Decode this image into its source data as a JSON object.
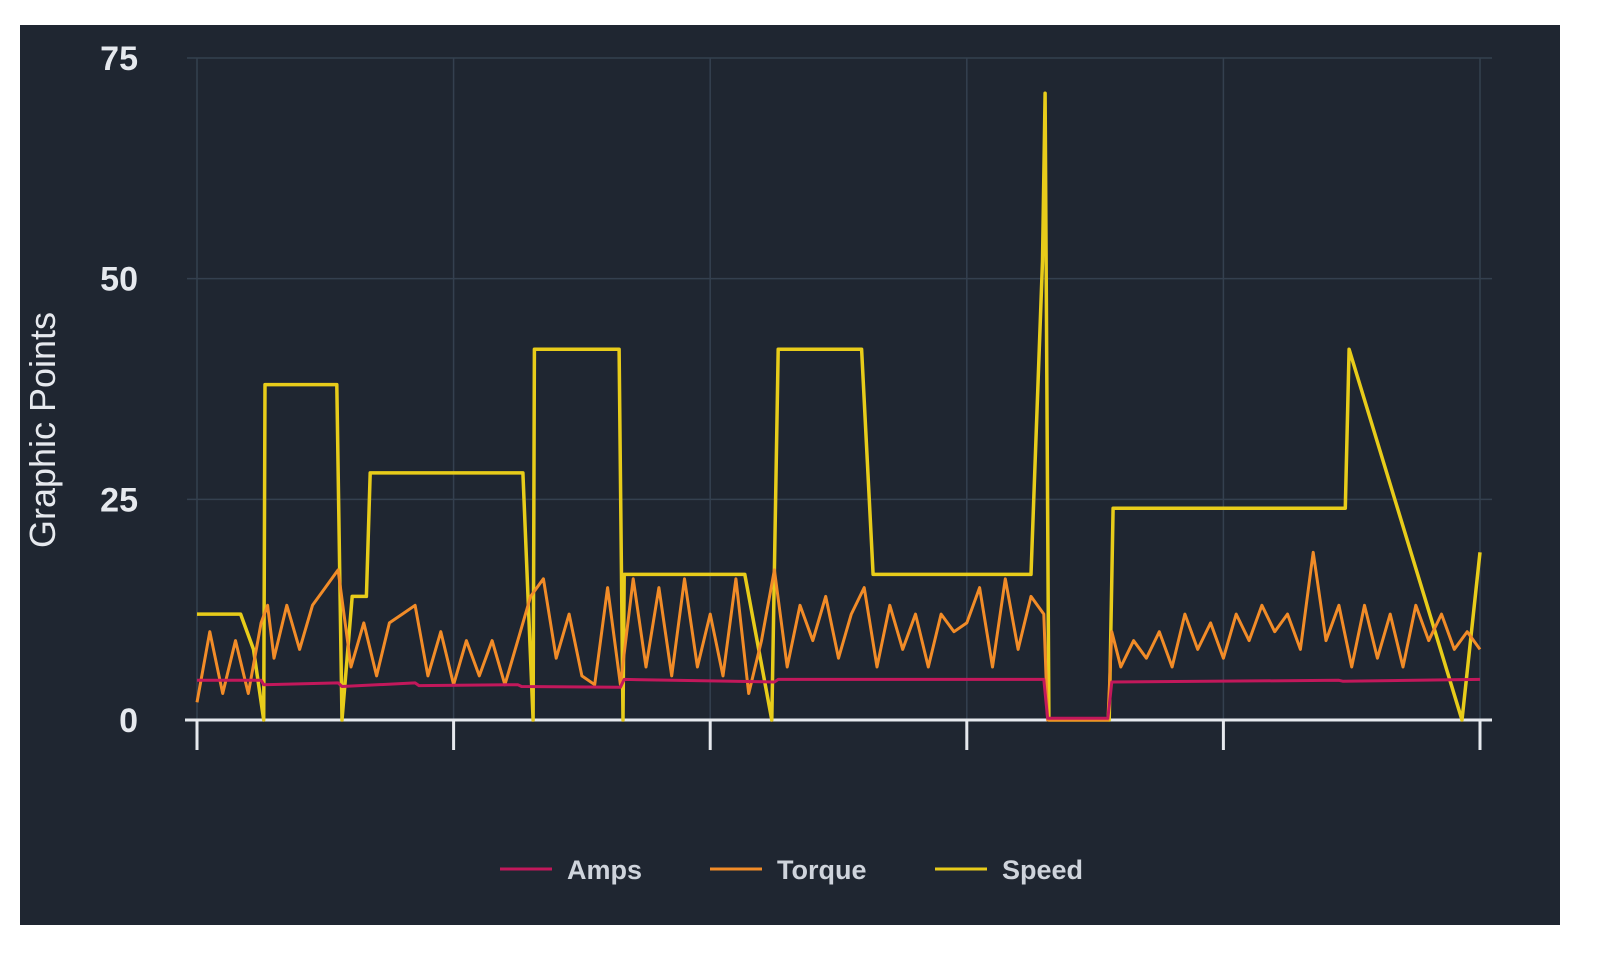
{
  "chart_data": {
    "type": "line",
    "title": "",
    "xlabel": "",
    "ylabel": "Graphic Points",
    "ylim": [
      0,
      75
    ],
    "xlim": [
      0,
      100
    ],
    "yticks": [
      "0",
      "25",
      "50",
      "75"
    ],
    "grid": true,
    "legend_position": "bottom",
    "series": [
      {
        "name": "Amps",
        "color": "#c2185b",
        "x": [
          0,
          5,
          5.2,
          11,
          11.3,
          17,
          17.3,
          25,
          25.3,
          33,
          33.3,
          45,
          45.3,
          66,
          66.3,
          71,
          71.3,
          89,
          89.3,
          100
        ],
        "y": [
          4.5,
          4.5,
          4.0,
          4.2,
          3.8,
          4.2,
          3.9,
          4.0,
          3.8,
          3.7,
          4.6,
          4.3,
          4.6,
          4.6,
          0.2,
          0.2,
          4.3,
          4.5,
          4.4,
          4.6
        ]
      },
      {
        "name": "Torque",
        "color": "#f28c28",
        "x": [
          0,
          1,
          2,
          3,
          4,
          5,
          5.5,
          6,
          7,
          8,
          9,
          10,
          11,
          12,
          13,
          14,
          15,
          16,
          17,
          18,
          19,
          20,
          21,
          22,
          23,
          24,
          25,
          26,
          27,
          28,
          29,
          30,
          31,
          32,
          33,
          34,
          35,
          36,
          37,
          38,
          39,
          40,
          41,
          42,
          43,
          44,
          45,
          46,
          47,
          48,
          49,
          50,
          51,
          52,
          53,
          54,
          55,
          56,
          57,
          58,
          59,
          60,
          61,
          62,
          63,
          64,
          65,
          66,
          66.3,
          71,
          71.3,
          72,
          73,
          74,
          75,
          76,
          77,
          78,
          79,
          80,
          81,
          82,
          83,
          84,
          85,
          86,
          87,
          88,
          89,
          90,
          91,
          92,
          93,
          94,
          95,
          96,
          97,
          98,
          99,
          100
        ],
        "y": [
          2,
          10,
          3,
          9,
          3,
          11,
          13,
          7,
          13,
          8,
          13,
          15,
          17,
          6,
          11,
          5,
          11,
          12,
          13,
          5,
          10,
          4,
          9,
          5,
          9,
          4,
          9,
          14,
          16,
          7,
          12,
          5,
          4,
          15,
          4,
          16,
          6,
          15,
          5,
          16,
          6,
          12,
          5,
          16,
          3,
          9,
          17,
          6,
          13,
          9,
          14,
          7,
          12,
          15,
          6,
          13,
          8,
          12,
          6,
          12,
          10,
          11,
          15,
          6,
          16,
          8,
          14,
          12,
          0,
          0,
          10,
          6,
          9,
          7,
          10,
          6,
          12,
          8,
          11,
          7,
          12,
          9,
          13,
          10,
          12,
          8,
          19,
          9,
          13,
          6,
          13,
          7,
          12,
          6,
          13,
          9,
          12,
          8,
          10,
          8
        ]
      },
      {
        "name": "Speed",
        "color": "#e8cc1a",
        "x": [
          0,
          3.4,
          4.4,
          5.2,
          5.3,
          10.9,
          11.3,
          12.1,
          13.2,
          13.5,
          25.4,
          26.2,
          26.3,
          32.9,
          33.2,
          33.3,
          42.7,
          44.8,
          45.3,
          51.8,
          52.7,
          65.0,
          65.9,
          66.1,
          66.4,
          71.1,
          71.4,
          89.5,
          89.8,
          98.6,
          100
        ],
        "y": [
          12,
          12,
          8,
          0,
          38,
          38,
          0,
          14,
          14,
          28,
          28,
          0,
          42,
          42,
          0,
          16.5,
          16.5,
          0,
          42,
          42,
          16.5,
          16.5,
          52,
          71,
          0,
          0,
          24,
          24,
          42,
          0,
          19
        ]
      }
    ]
  }
}
